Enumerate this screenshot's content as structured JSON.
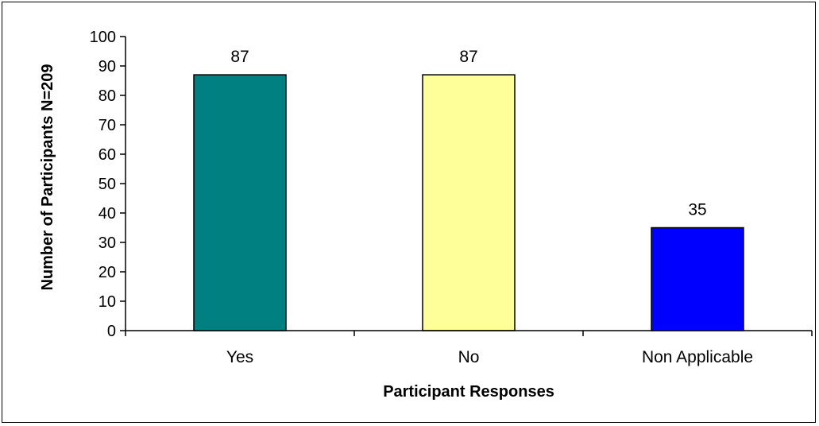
{
  "chart_data": {
    "type": "bar",
    "title": "",
    "xlabel": "Participant Responses",
    "ylabel": "Number of Participants N=209",
    "categories": [
      "Yes",
      "No",
      "Non Applicable"
    ],
    "values": [
      87,
      87,
      35
    ],
    "data_labels": [
      "87",
      "87",
      "35"
    ],
    "ylim": [
      0,
      100
    ],
    "yticks": [
      0,
      10,
      20,
      30,
      40,
      50,
      60,
      70,
      80,
      90,
      100
    ],
    "ytick_labels": [
      "0",
      "10",
      "20",
      "30",
      "40",
      "50",
      "60",
      "70",
      "80",
      "90",
      "100"
    ],
    "colors": [
      "#008080",
      "#FFFF99",
      "#0000FF"
    ],
    "grid": false,
    "legend": "none"
  }
}
